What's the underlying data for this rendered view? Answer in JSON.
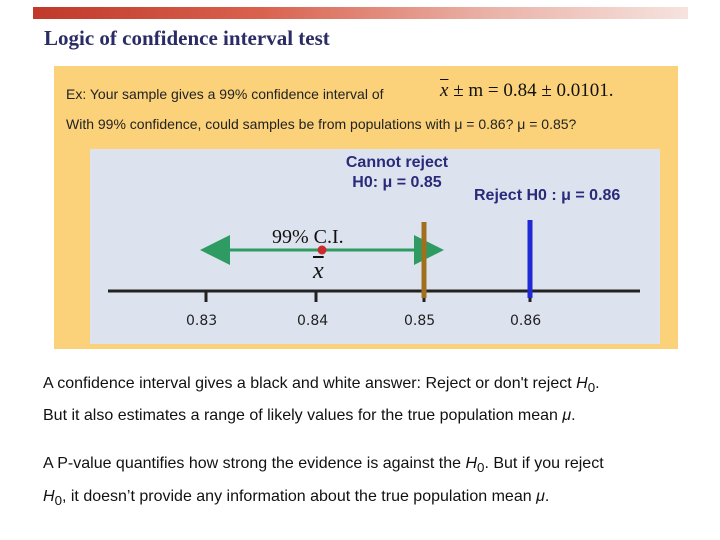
{
  "slide": {
    "title": "Logic of confidence interval test",
    "example_line": "Ex: Your sample gives a 99% confidence interval of",
    "formula": {
      "xbar": "x",
      "pm_m": " ± m = 0.84 ± 0.0101."
    },
    "question": "With 99% confidence, could samples be from populations with μ = 0.86? μ = 0.85?",
    "diagram": {
      "cannot_reject_line1": "Cannot reject",
      "cannot_reject_line2": "H0: μ = 0.85",
      "reject_label": "Reject H0 : μ = 0.86",
      "ci_label": "99% C.I.",
      "xbar_label": "x",
      "tick_labels": [
        "0.83",
        "0.84",
        "0.85",
        "0.86"
      ],
      "colors": {
        "arrow": "#2e9b62",
        "line_085": "#a0701e",
        "line_086": "#1f2ad4",
        "point": "#cc2b2b"
      }
    },
    "paragraphs": [
      {
        "a": "A confidence interval gives a black and white answer: Reject or don't reject ",
        "b": "H",
        "sub": "0",
        "c": "."
      },
      {
        "a": "But it also estimates a range of likely values for the true population mean ",
        "b": "μ",
        "c": "."
      },
      {
        "a": "A P-value quantifies how strong the evidence is against the ",
        "b": "H",
        "sub": "0",
        "c": ". But if you reject"
      },
      {
        "a": "",
        "b": "H",
        "sub": "0",
        "c": ", it doesn’t provide any information about the true population mean ",
        "d": "μ",
        "e": "."
      }
    ]
  }
}
